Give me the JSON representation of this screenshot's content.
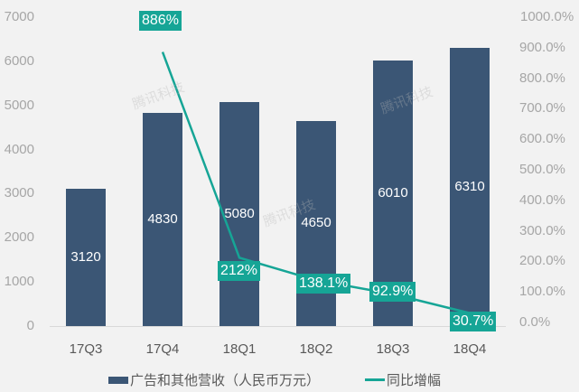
{
  "chart_data": {
    "type": "bar+line",
    "categories": [
      "17Q3",
      "17Q4",
      "18Q1",
      "18Q2",
      "18Q3",
      "18Q4"
    ],
    "series": [
      {
        "name": "广告和其他营收（人民币万元）",
        "type": "bar",
        "axis": "left",
        "values": [
          3120,
          4830,
          5080,
          4650,
          6010,
          6310
        ],
        "labels": [
          "3120",
          "4830",
          "5080",
          "4650",
          "6010",
          "6310"
        ],
        "color": "#3b5675"
      },
      {
        "name": "同比增幅",
        "type": "line",
        "axis": "right",
        "values": [
          null,
          886,
          212,
          138.1,
          92.9,
          30.7
        ],
        "labels": [
          "",
          "886%",
          "212%",
          "138.1%",
          "92.9%",
          "30.7%"
        ],
        "color": "#16a596"
      }
    ],
    "title": "",
    "xlabel": "",
    "ylabel": "",
    "ylim": [
      0,
      7000
    ],
    "y2lim": [
      0,
      1000
    ],
    "left_ticks": [
      "0",
      "1000",
      "2000",
      "3000",
      "4000",
      "5000",
      "6000",
      "7000"
    ],
    "right_ticks": [
      "0.0%",
      "100.0%",
      "200.0%",
      "300.0%",
      "400.0%",
      "500.0%",
      "600.0%",
      "700.0%",
      "800.0%",
      "900.0%",
      "1000.0%"
    ],
    "grid": false,
    "legend_position": "bottom"
  },
  "legend": {
    "bar_label": "广告和其他营收（人民币万元）",
    "line_label": "同比增幅"
  },
  "watermark": "腾讯科技"
}
